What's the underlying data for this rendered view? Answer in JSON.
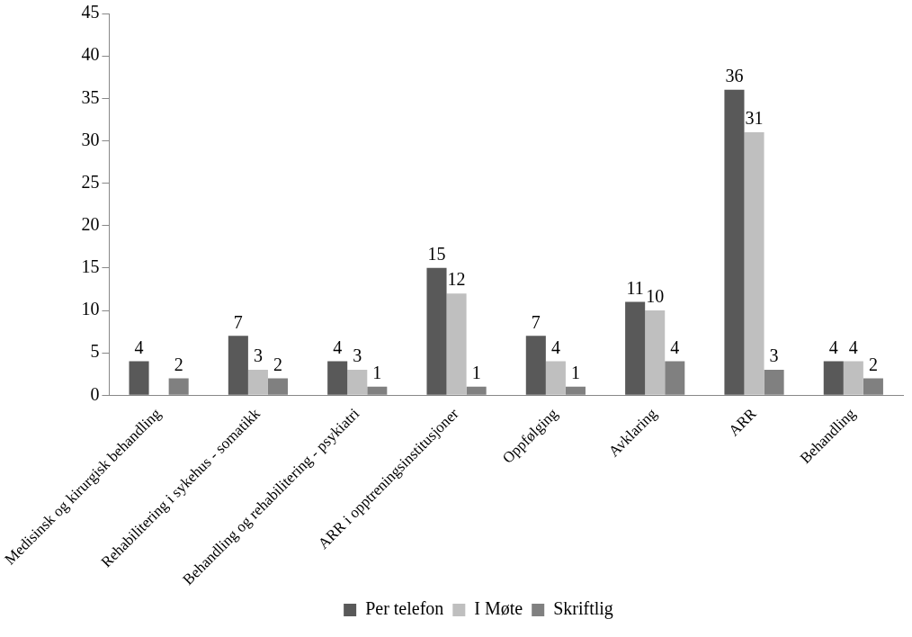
{
  "chart_data": {
    "type": "bar",
    "categories": [
      "Medisinsk og kirurgisk behandling",
      "Rehabilitering i sykehus - somatikk",
      "Behandling og rehabilitering - psykiatri",
      "ARR i opptreningsinstitusjoner",
      "Oppfølging",
      "Avklaring",
      "ARR",
      "Behandling"
    ],
    "series": [
      {
        "name": "Per telefon",
        "color": "#595959",
        "values": [
          4,
          7,
          4,
          15,
          7,
          11,
          36,
          4
        ]
      },
      {
        "name": "I Møte",
        "color": "#bfbfbf",
        "values": [
          null,
          3,
          3,
          12,
          4,
          10,
          31,
          4
        ]
      },
      {
        "name": "Skriftlig",
        "color": "#808080",
        "values": [
          2,
          2,
          1,
          1,
          1,
          4,
          3,
          2
        ]
      }
    ],
    "ylim": [
      0,
      45
    ],
    "yticks": [
      0,
      5,
      10,
      15,
      20,
      25,
      30,
      35,
      40,
      45
    ],
    "grid": false,
    "legend": "bottom",
    "data_labels": true
  }
}
